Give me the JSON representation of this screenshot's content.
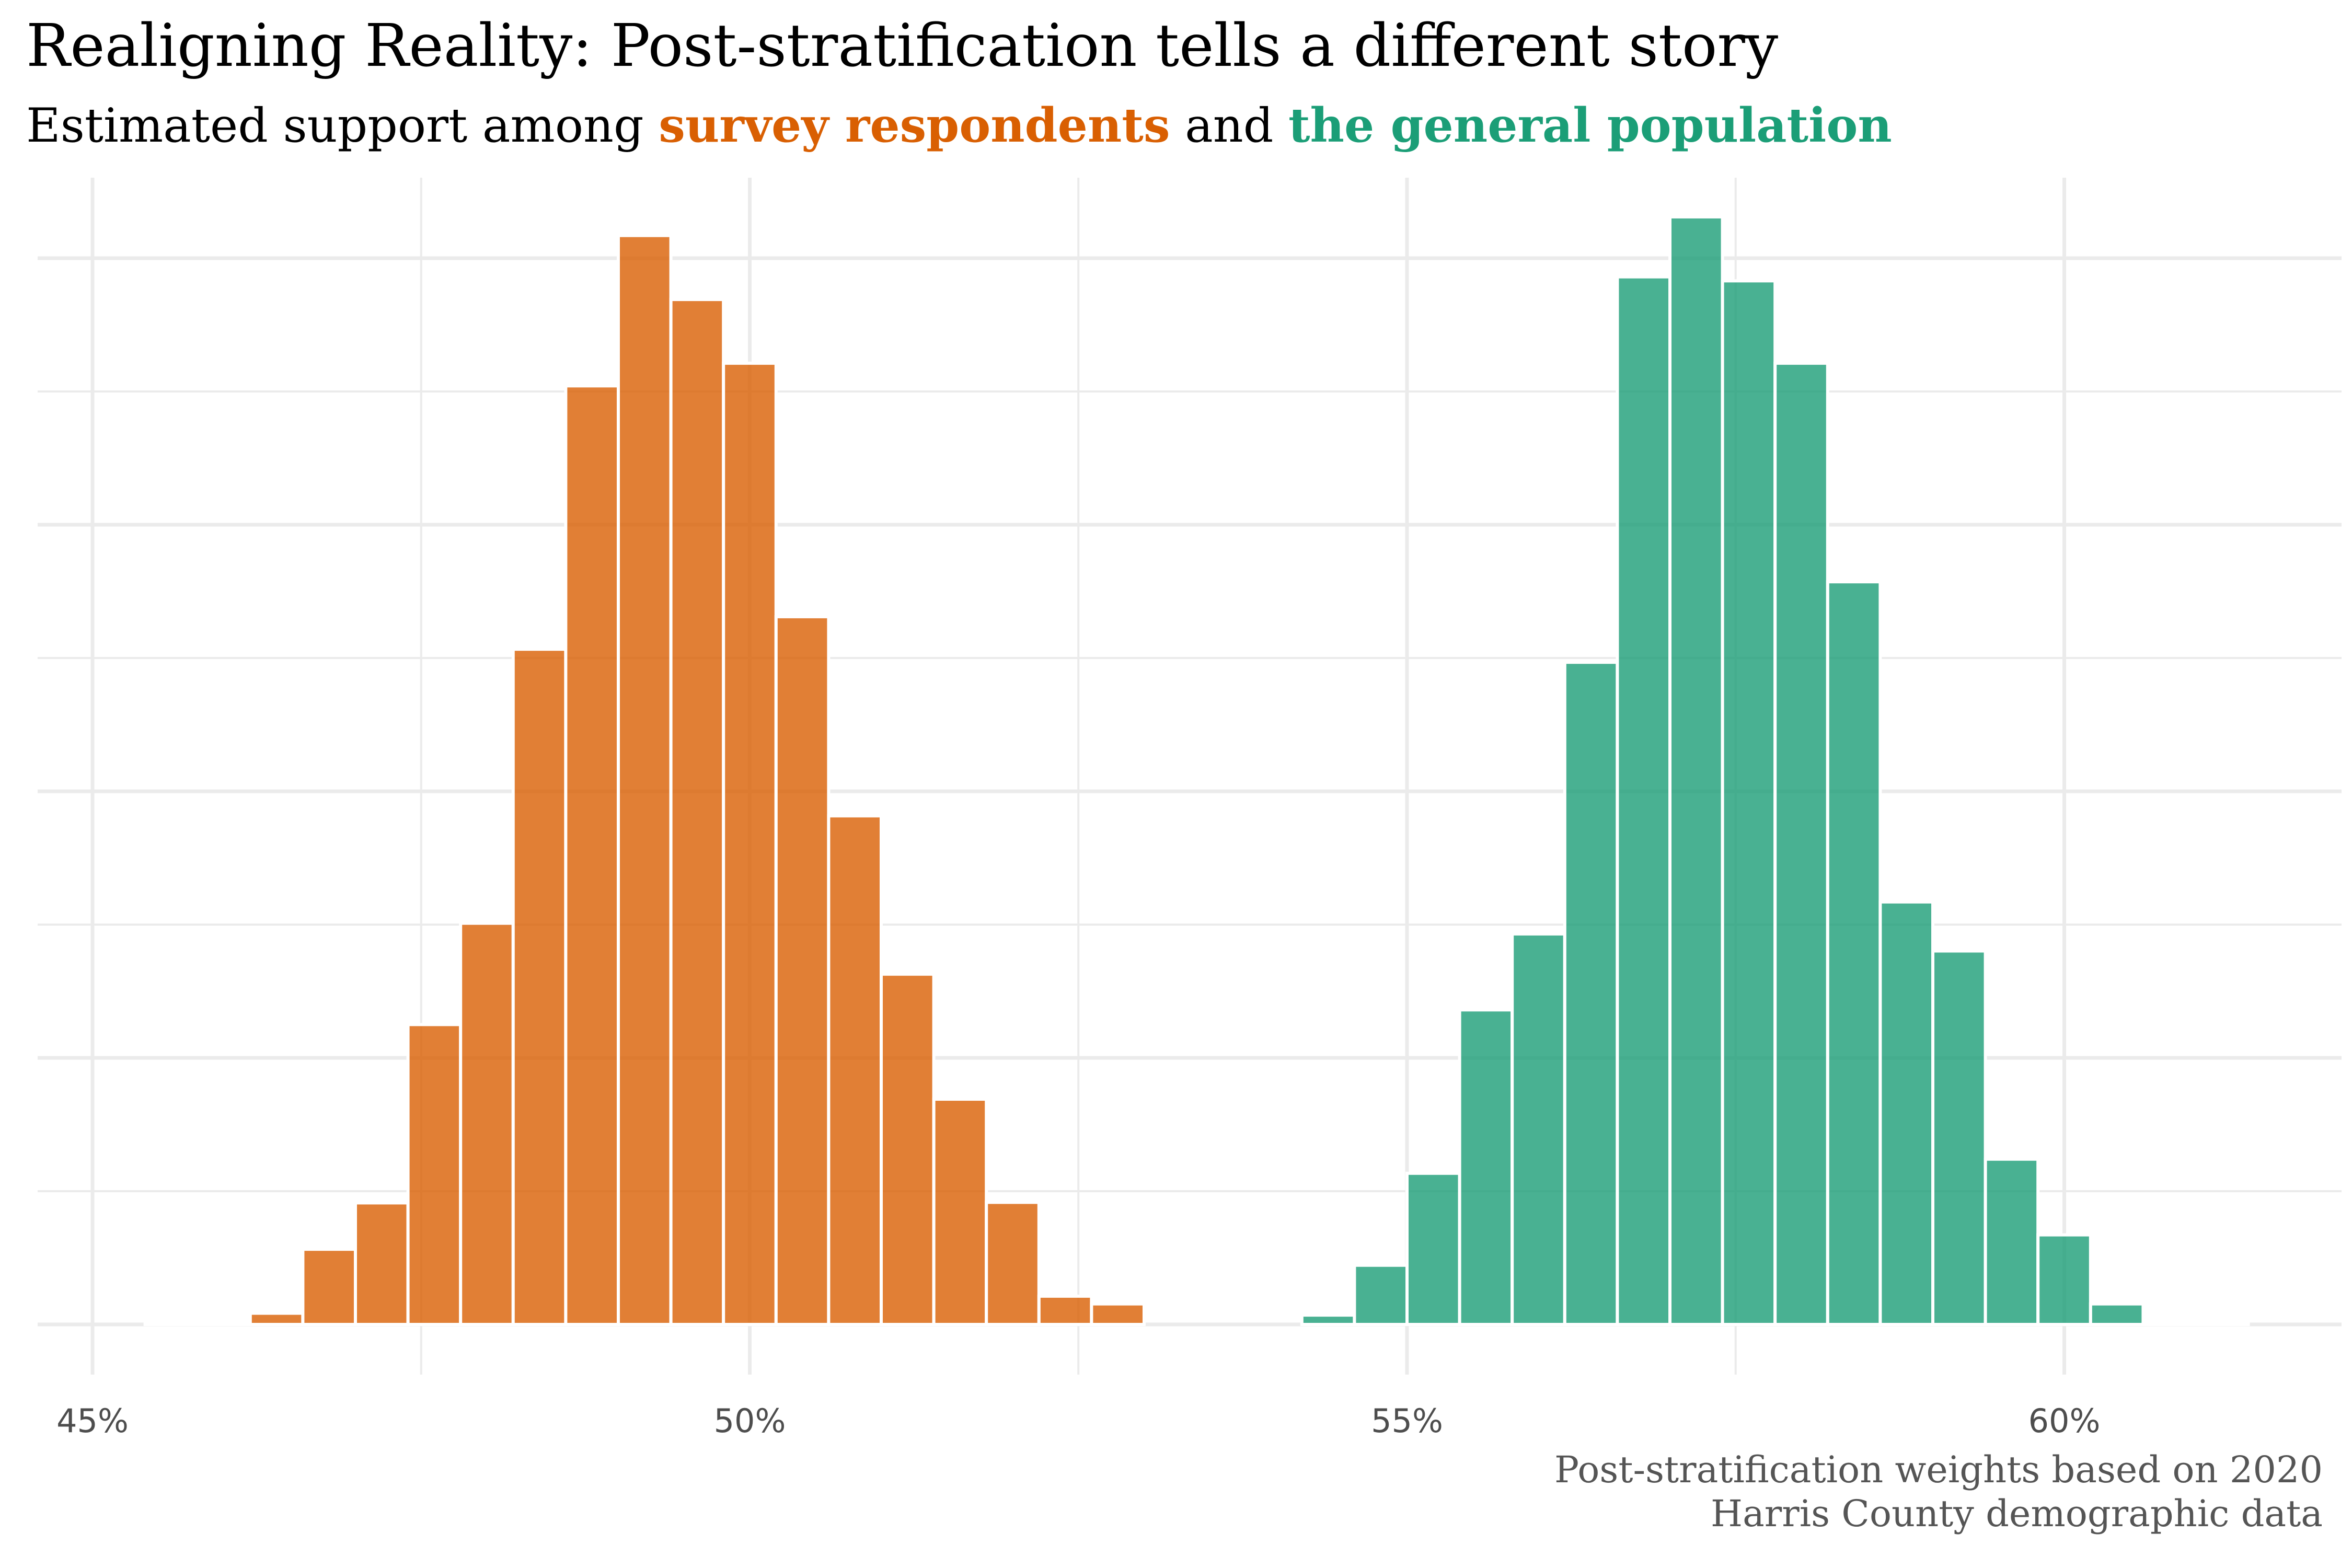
{
  "title": "Realigning Reality: Post-stratification tells a different story",
  "subtitle": {
    "prefix": "Estimated support among ",
    "series1_label": "survey respondents",
    "middle": " and ",
    "series2_label": "the general population"
  },
  "caption": {
    "line1": "Post-stratification weights based on 2020",
    "line2": "Harris County demographic data"
  },
  "colors": {
    "series1": "#d95f02",
    "series2": "#1b9e77",
    "grid": "#ebebeb",
    "axis_text": "#4d4d4d"
  },
  "chart_data": {
    "type": "bar",
    "chart_subtype": "histogram",
    "bin_width": 0.4,
    "xlim": [
      44.6,
      62
    ],
    "x_ticks": [
      45,
      50,
      55,
      60
    ],
    "x_tick_labels": [
      "45%",
      "50%",
      "55%",
      "60%"
    ],
    "y_ticks_labeled": false,
    "y_max": 0.7,
    "grid": true,
    "series": [
      {
        "name": "survey respondents",
        "bins": [
          {
            "start": 45.4,
            "end": 45.8,
            "value": 0.0
          },
          {
            "start": 45.8,
            "end": 46.2,
            "value": 0.0
          },
          {
            "start": 46.2,
            "end": 46.6,
            "value": 0.0042
          },
          {
            "start": 46.6,
            "end": 47.0,
            "value": 0.0282
          },
          {
            "start": 47.0,
            "end": 47.4,
            "value": 0.0456
          },
          {
            "start": 47.4,
            "end": 47.8,
            "value": 0.1125
          },
          {
            "start": 47.8,
            "end": 48.2,
            "value": 0.1505
          },
          {
            "start": 48.2,
            "end": 48.6,
            "value": 0.2533
          },
          {
            "start": 48.6,
            "end": 49.0,
            "value": 0.3521
          },
          {
            "start": 49.0,
            "end": 49.4,
            "value": 0.4085
          },
          {
            "start": 49.4,
            "end": 49.8,
            "value": 0.3845
          },
          {
            "start": 49.8,
            "end": 50.2,
            "value": 0.3606
          },
          {
            "start": 50.2,
            "end": 50.6,
            "value": 0.2655
          },
          {
            "start": 50.6,
            "end": 51.0,
            "value": 0.1908
          },
          {
            "start": 51.0,
            "end": 51.4,
            "value": 0.1314
          },
          {
            "start": 51.4,
            "end": 51.8,
            "value": 0.0845
          },
          {
            "start": 51.8,
            "end": 52.2,
            "value": 0.0458
          },
          {
            "start": 52.2,
            "end": 52.6,
            "value": 0.0106
          },
          {
            "start": 52.6,
            "end": 53.0,
            "value": 0.0077
          }
        ]
      },
      {
        "name": "the general population",
        "bins": [
          {
            "start": 54.2,
            "end": 54.6,
            "value": 0.0035
          },
          {
            "start": 54.6,
            "end": 55.0,
            "value": 0.0222
          },
          {
            "start": 55.0,
            "end": 55.4,
            "value": 0.0567
          },
          {
            "start": 55.4,
            "end": 55.8,
            "value": 0.118
          },
          {
            "start": 55.8,
            "end": 56.2,
            "value": 0.1465
          },
          {
            "start": 56.2,
            "end": 56.6,
            "value": 0.2484
          },
          {
            "start": 56.6,
            "end": 57.0,
            "value": 0.393
          },
          {
            "start": 57.0,
            "end": 57.4,
            "value": 0.4155
          },
          {
            "start": 57.4,
            "end": 57.8,
            "value": 0.3915
          },
          {
            "start": 57.8,
            "end": 58.2,
            "value": 0.3606
          },
          {
            "start": 58.2,
            "end": 58.6,
            "value": 0.2786
          },
          {
            "start": 58.6,
            "end": 59.0,
            "value": 0.1585
          },
          {
            "start": 59.0,
            "end": 59.4,
            "value": 0.1401
          },
          {
            "start": 59.4,
            "end": 59.8,
            "value": 0.062
          },
          {
            "start": 59.8,
            "end": 60.2,
            "value": 0.0336
          },
          {
            "start": 60.2,
            "end": 60.6,
            "value": 0.0077
          },
          {
            "start": 60.6,
            "end": 61.0,
            "value": 0.0
          },
          {
            "start": 61.0,
            "end": 61.4,
            "value": 0.0
          }
        ]
      }
    ]
  }
}
